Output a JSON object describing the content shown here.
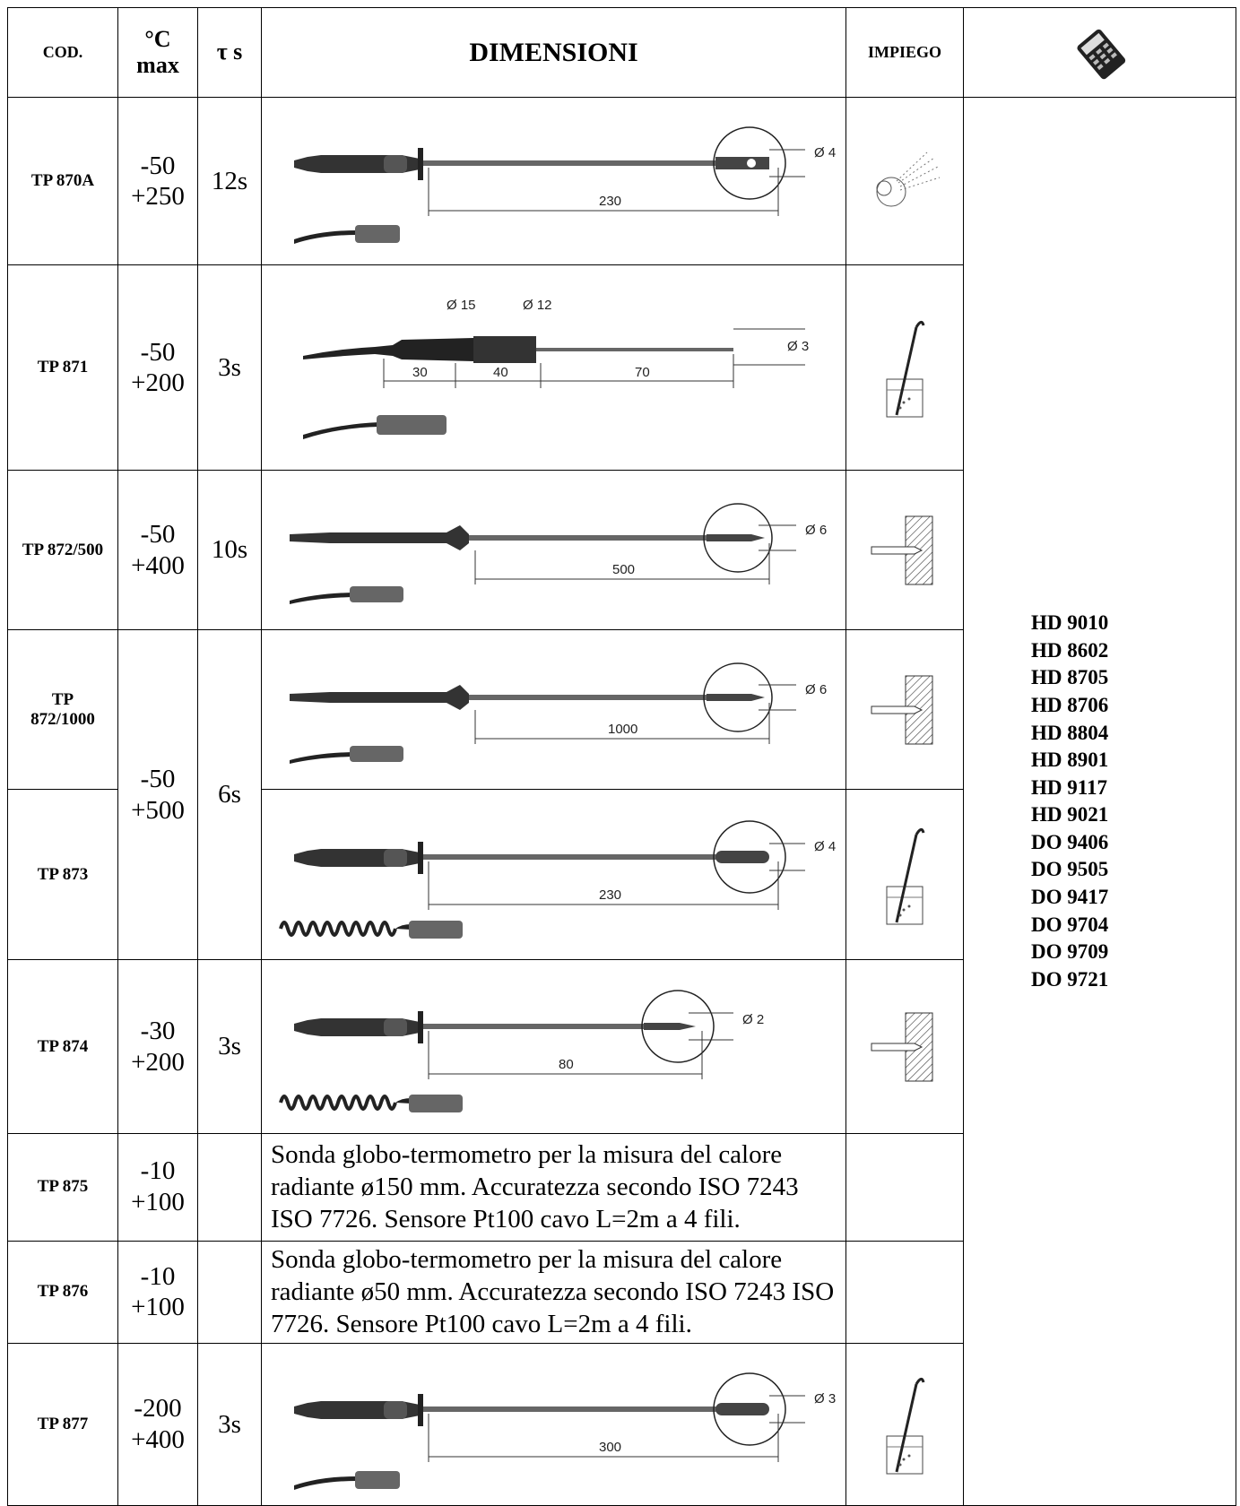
{
  "header": {
    "cod": "COD.",
    "temp_unit": "°C",
    "temp_max": "max",
    "tau": "τ s",
    "dimensioni": "DIMENSIONI",
    "impiego": "IMPIEGO",
    "instrument_icon": "handheld-meter-icon"
  },
  "rows": [
    {
      "code": "TP 870A",
      "tmin": "-50",
      "tmax": "+250",
      "tau": "12s",
      "dim": {
        "diameter": "Ø 4",
        "lengths": [
          "230"
        ]
      },
      "use_icon": "air-gas-icon"
    },
    {
      "code": "TP 871",
      "tmin": "-50",
      "tmax": "+200",
      "tau": "3s",
      "dim": {
        "diameters": [
          "Ø 15",
          "Ø 12",
          "Ø 3"
        ],
        "lengths": [
          "30",
          "40",
          "70"
        ]
      },
      "use_icon": "liquid-immersion-icon"
    },
    {
      "code": "TP 872/500",
      "tmin": "-50",
      "tmax": "+400",
      "tau": "10s",
      "dim": {
        "diameter": "Ø 6",
        "lengths": [
          "500"
        ]
      },
      "use_icon": "penetration-icon"
    },
    {
      "code": "TP 872/1000",
      "code_lines": [
        "TP",
        "872/1000"
      ],
      "dim": {
        "diameter": "Ø 6",
        "lengths": [
          "1000"
        ]
      },
      "use_icon": "penetration-icon"
    },
    {
      "code": "TP 873",
      "dim": {
        "diameter": "Ø 4",
        "lengths": [
          "230"
        ]
      },
      "use_icon": "liquid-immersion-icon"
    },
    {
      "code": "TP 874",
      "tmin": "-30",
      "tmax": "+200",
      "tau": "3s",
      "dim": {
        "diameter": "Ø 2",
        "lengths": [
          "80"
        ]
      },
      "use_icon": "penetration-icon"
    },
    {
      "code": "TP 875",
      "tmin": "-10",
      "tmax": "+100",
      "tau": "",
      "description": "Sonda globo-termometro per la misura del calore radiante ø150 mm. Accuratezza secondo ISO 7243 ISO 7726. Sensore Pt100 cavo L=2m a 4 fili."
    },
    {
      "code": "TP 876",
      "tmin": "-10",
      "tmax": "+100",
      "tau": "",
      "description": "Sonda globo-termometro per la misura del calore radiante ø50 mm. Accuratezza secondo ISO 7243 ISO 7726. Sensore Pt100 cavo L=2m a 4 fili."
    },
    {
      "code": "TP 877",
      "tmin": "-200",
      "tmax": "+400",
      "tau": "3s",
      "dim": {
        "diameter": "Ø 3",
        "lengths": [
          "300"
        ]
      },
      "use_icon": "liquid-immersion-icon"
    }
  ],
  "merged_873": {
    "tmin": "-50",
    "tmax": "+500",
    "tau": "6s"
  },
  "instruments": [
    "HD 9010",
    "HD 8602",
    "HD 8705",
    "HD 8706",
    "HD 8804",
    "HD 8901",
    "HD 9117",
    "HD 9021",
    "DO 9406",
    "DO 9505",
    "DO 9417",
    "DO 9704",
    "DO 9709",
    "DO 9721"
  ]
}
